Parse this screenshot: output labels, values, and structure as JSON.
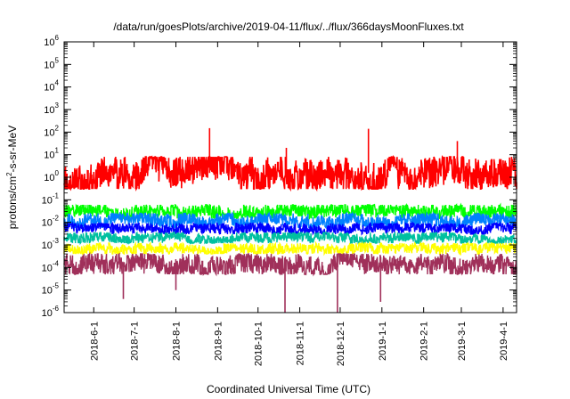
{
  "chart_data": {
    "type": "line",
    "title": "/data/run/goesPlots/archive/2019-04-11/flux/../flux/366daysMoonFluxes.txt",
    "xlabel": "Coordinated Universal Time (UTC)",
    "ylabel": {
      "before": "protons/cm",
      "sup": "2",
      "after": "-s-sr-MeV"
    },
    "y_scale": "log",
    "ylim": [
      1e-06,
      1000000.0
    ],
    "y_ticks": [
      {
        "value": 1e-06,
        "base": "10",
        "exp": "-6"
      },
      {
        "value": 1e-05,
        "base": "10",
        "exp": "-5"
      },
      {
        "value": 0.0001,
        "base": "10",
        "exp": "-4"
      },
      {
        "value": 0.001,
        "base": "10",
        "exp": "-3"
      },
      {
        "value": 0.01,
        "base": "10",
        "exp": "-2"
      },
      {
        "value": 0.1,
        "base": "10",
        "exp": "-1"
      },
      {
        "value": 1,
        "base": "10",
        "exp": "0"
      },
      {
        "value": 10,
        "base": "10",
        "exp": "1"
      },
      {
        "value": 100,
        "base": "10",
        "exp": "2"
      },
      {
        "value": 1000,
        "base": "10",
        "exp": "3"
      },
      {
        "value": 10000,
        "base": "10",
        "exp": "4"
      },
      {
        "value": 100000,
        "base": "10",
        "exp": "5"
      },
      {
        "value": 1000000,
        "base": "10",
        "exp": "6"
      }
    ],
    "xlim": [
      "2018-05-10",
      "2019-04-11"
    ],
    "x_ticks": [
      "2018-6-1",
      "2018-7-1",
      "2018-8-1",
      "2018-9-1",
      "2018-10-1",
      "2018-11-1",
      "2018-12-1",
      "2019-1-1",
      "2019-2-1",
      "2019-3-1",
      "2019-4-1"
    ],
    "grid": false,
    "legend": "none",
    "series": [
      {
        "color": "#ff0000",
        "typical_range": [
          0.3,
          8
        ],
        "spikes": [
          {
            "x": "2018-8-26",
            "y": 150
          },
          {
            "x": "2018-12-22",
            "y": 140
          },
          {
            "x": "2019-2-26",
            "y": 40
          },
          {
            "x": "2018-10-22",
            "y": 20
          }
        ]
      },
      {
        "color": "#00ff00",
        "typical_range": [
          0.015,
          0.06
        ],
        "spikes": []
      },
      {
        "color": "#0080ff",
        "typical_range": [
          0.006,
          0.025
        ],
        "spikes": []
      },
      {
        "color": "#0000ff",
        "typical_range": [
          0.003,
          0.009
        ],
        "spikes": []
      },
      {
        "color": "#00c0a0",
        "typical_range": [
          0.0012,
          0.0035
        ],
        "spikes": []
      },
      {
        "color": "#ffff00",
        "typical_range": [
          0.0004,
          0.0012
        ],
        "spikes": []
      },
      {
        "color": "#a0305a",
        "typical_range": [
          5e-05,
          0.0004
        ],
        "spikes": [
          {
            "x": "2018-6-23",
            "y": 4e-06
          },
          {
            "x": "2018-8-1",
            "y": 1e-05
          },
          {
            "x": "2018-10-21",
            "y": 1e-06
          },
          {
            "x": "2018-11-29",
            "y": 1e-06
          },
          {
            "x": "2018-12-31",
            "y": 3e-06
          }
        ]
      }
    ]
  }
}
